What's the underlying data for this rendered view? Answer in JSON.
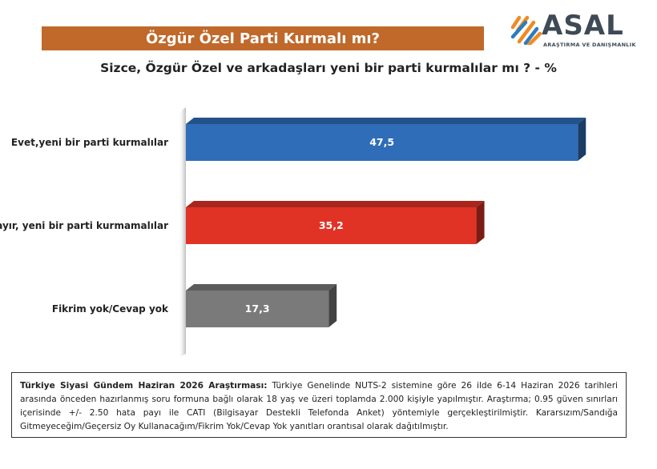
{
  "header": {
    "banner_title": "Özgür Özel Parti Kurmalı mı?",
    "subtitle": "Sizce, Özgür Özel ve arkadaşları yeni bir parti kurmalılar mı ? - %"
  },
  "logo": {
    "word": "ASAL",
    "tagline": "ARAŞTIRMA VE DANIŞMANLIK",
    "colors": {
      "orange": "#f08a24",
      "blue": "#2e7bbf",
      "text": "#3e4a55"
    }
  },
  "chart_data": {
    "type": "bar",
    "orientation": "horizontal",
    "categories": [
      "Evet,yeni bir parti kurmalılar",
      "Hayır, yeni bir parti kurmamalılar",
      "Fikrim yok/Cevap yok"
    ],
    "values": [
      47.5,
      35.2,
      17.3
    ],
    "value_labels": [
      "47,5",
      "35,2",
      "17,3"
    ],
    "colors": [
      "#2f6db8",
      "#e03325",
      "#7a7a7a"
    ],
    "xlim": [
      0,
      50
    ],
    "grid": false,
    "legend": false
  },
  "footnote": {
    "title": "Türkiye Siyasi Gündem Haziran 2026 Araştırması:",
    "text": " Türkiye Genelinde NUTS-2 sistemine göre 26 ilde 6-14 Haziran 2026 tarihleri arasında önceden hazırlanmış soru formuna bağlı olarak 18 yaş ve üzeri toplamda 2.000 kişiyle yapılmıştır. Araştırma; 0.95 güven sınırları içerisinde +/- 2.50 hata payı ile CATI (Bilgisayar Destekli Telefonda Anket) yöntemiyle gerçekleştirilmiştir. Kararsızım/Sandığa Gitmeyeceğim/Geçersiz Oy Kullanacağım/Fikrim Yok/Cevap Yok yanıtları orantısal olarak dağıtılmıştır."
  }
}
